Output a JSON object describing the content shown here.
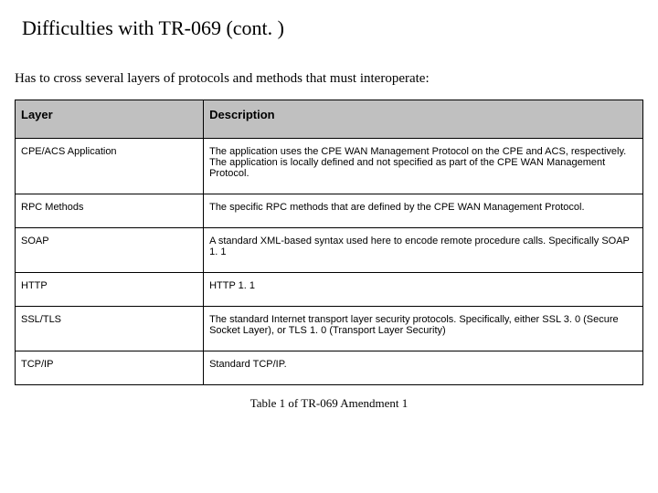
{
  "title": "Difficulties with TR-069 (cont. )",
  "intro": "Has to cross several layers of protocols and methods that must interoperate:",
  "table": {
    "headers": {
      "layer": "Layer",
      "description": "Description"
    },
    "rows": [
      {
        "layer": "CPE/ACS Application",
        "description": "The application uses the CPE WAN Management Protocol on the CPE and ACS, respectively. The application is locally defined and not specified as part of the CPE WAN Management Protocol."
      },
      {
        "layer": "RPC Methods",
        "description": "The specific RPC methods that are defined by the CPE WAN Management Protocol."
      },
      {
        "layer": "SOAP",
        "description": "A standard XML-based syntax used here to encode remote procedure calls.  Specifically SOAP 1. 1"
      },
      {
        "layer": "HTTP",
        "description": "HTTP 1. 1"
      },
      {
        "layer": "SSL/TLS",
        "description": "The standard Internet transport layer security protocols.  Specifically, either SSL 3. 0 (Secure Socket Layer), or TLS 1. 0 (Transport Layer Security)"
      },
      {
        "layer": "TCP/IP",
        "description": "Standard TCP/IP."
      }
    ]
  },
  "caption": "Table 1 of TR-069 Amendment 1"
}
